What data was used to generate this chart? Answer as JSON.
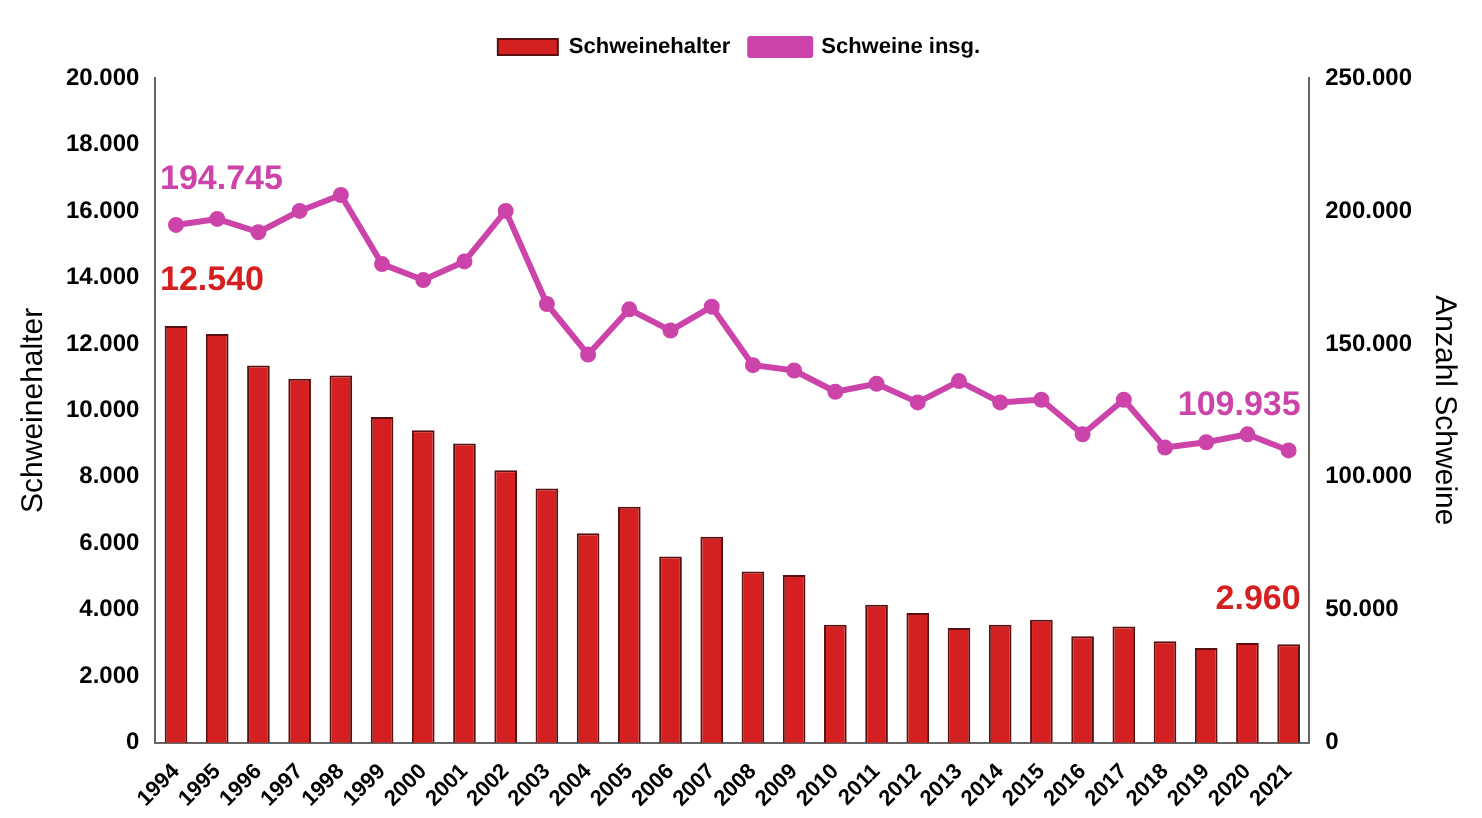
{
  "chart_data": {
    "type": "bar",
    "ylabel": "Schweinehalter",
    "y2label": "Anzahl Schweine",
    "legend": "top",
    "grid": false,
    "categories": [
      "1994",
      "1995",
      "1996",
      "1997",
      "1998",
      "1999",
      "2000",
      "2001",
      "2002",
      "2003",
      "2004",
      "2005",
      "2006",
      "2007",
      "2008",
      "2009",
      "2010",
      "2011",
      "2012",
      "2013",
      "2014",
      "2015",
      "2016",
      "2017",
      "2018",
      "2019",
      "2020",
      "2021"
    ],
    "ylim": [
      0,
      20000
    ],
    "yticks": [
      {
        "value": 0,
        "label": "0"
      },
      {
        "value": 2000,
        "label": "2.000"
      },
      {
        "value": 4000,
        "label": "4.000"
      },
      {
        "value": 6000,
        "label": "6.000"
      },
      {
        "value": 8000,
        "label": "8.000"
      },
      {
        "value": 10000,
        "label": "10.000"
      },
      {
        "value": 12000,
        "label": "12.000"
      },
      {
        "value": 14000,
        "label": "14.000"
      },
      {
        "value": 16000,
        "label": "16.000"
      },
      {
        "value": 18000,
        "label": "18.000"
      },
      {
        "value": 20000,
        "label": "20.000"
      }
    ],
    "y2lim": [
      0,
      250000
    ],
    "y2ticks": [
      {
        "value": 0,
        "label": "0"
      },
      {
        "value": 50000,
        "label": "50.000"
      },
      {
        "value": 100000,
        "label": "100.000"
      },
      {
        "value": 150000,
        "label": "150.000"
      },
      {
        "value": 200000,
        "label": "200.000"
      },
      {
        "value": 250000,
        "label": "250.000"
      }
    ],
    "series": [
      {
        "name": "Schweinehalter",
        "color": "#d42020",
        "values": [
          12540,
          12300,
          11350,
          10950,
          11050,
          9800,
          9400,
          9000,
          8200,
          7650,
          6300,
          7100,
          5600,
          6200,
          5150,
          5050,
          3550,
          4150,
          3900,
          3450,
          3550,
          3700,
          3200,
          3500,
          3050,
          2850,
          3000,
          2960
        ],
        "value_labels": [
          "12.540",
          null,
          null,
          null,
          null,
          null,
          null,
          null,
          null,
          null,
          null,
          null,
          null,
          null,
          null,
          null,
          null,
          null,
          null,
          null,
          null,
          null,
          null,
          null,
          null,
          null,
          null,
          "2.960"
        ]
      },
      {
        "name": "Schweine insg.",
        "type": "line",
        "axis": "y2",
        "color": "#cc44aa",
        "marker": "circle",
        "line_style": "solid",
        "values": [
          194745,
          197000,
          192000,
          200000,
          206000,
          180000,
          174000,
          181000,
          200000,
          165000,
          146000,
          163000,
          155000,
          164000,
          142000,
          140000,
          132000,
          135000,
          128000,
          136000,
          128000,
          129000,
          116000,
          129000,
          111000,
          113000,
          116000,
          109935
        ],
        "value_labels": [
          "194.745",
          null,
          null,
          null,
          null,
          null,
          null,
          null,
          null,
          null,
          null,
          null,
          null,
          null,
          null,
          null,
          null,
          null,
          null,
          null,
          null,
          null,
          null,
          null,
          null,
          null,
          null,
          "109.935"
        ]
      }
    ]
  }
}
